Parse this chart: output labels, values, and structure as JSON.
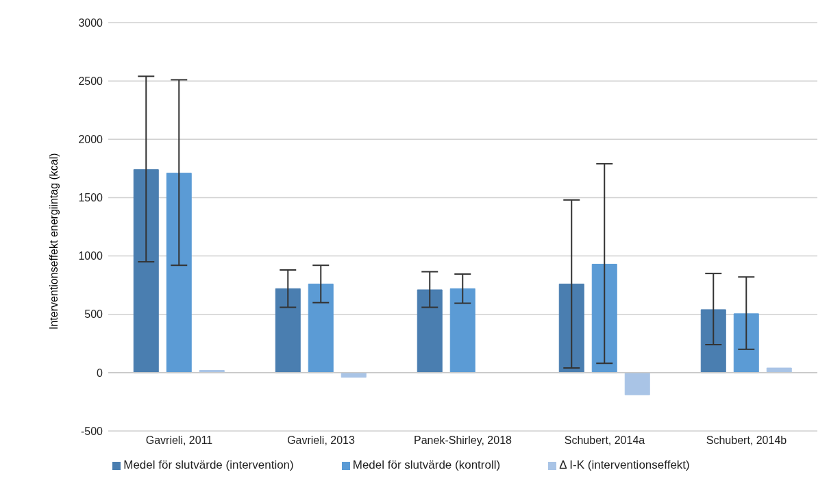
{
  "chart_data": {
    "type": "bar",
    "ylabel": "Interventionseffekt energiintag (kcal)",
    "categories": [
      "Gavrieli, 2011",
      "Gavrieli, 2013",
      "Panek-Shirley, 2018",
      "Schubert, 2014a",
      "Schubert, 2014b"
    ],
    "series": [
      {
        "name": "Medel för slutvärde (intervention)",
        "color": "#4a7eb0",
        "values": [
          1740,
          720,
          710,
          760,
          540
        ],
        "errors": [
          [
            950,
            2540
          ],
          [
            560,
            880
          ],
          [
            560,
            865
          ],
          [
            40,
            1480
          ],
          [
            240,
            850
          ]
        ]
      },
      {
        "name": "Medel för slutvärde (kontroll)",
        "color": "#5b9bd5",
        "values": [
          1710,
          760,
          720,
          930,
          505
        ],
        "errors": [
          [
            920,
            2510
          ],
          [
            600,
            920
          ],
          [
            595,
            845
          ],
          [
            80,
            1790
          ],
          [
            200,
            820
          ]
        ]
      },
      {
        "name": "Δ I-K (interventionseffekt)",
        "color": "#a9c4e6",
        "values": [
          20,
          -40,
          0,
          -190,
          40
        ]
      }
    ],
    "ylim": [
      -500,
      3000
    ],
    "yticks": [
      -500,
      0,
      500,
      1000,
      1500,
      2000,
      2500,
      3000
    ],
    "grid": "y",
    "legend": "bottom"
  }
}
